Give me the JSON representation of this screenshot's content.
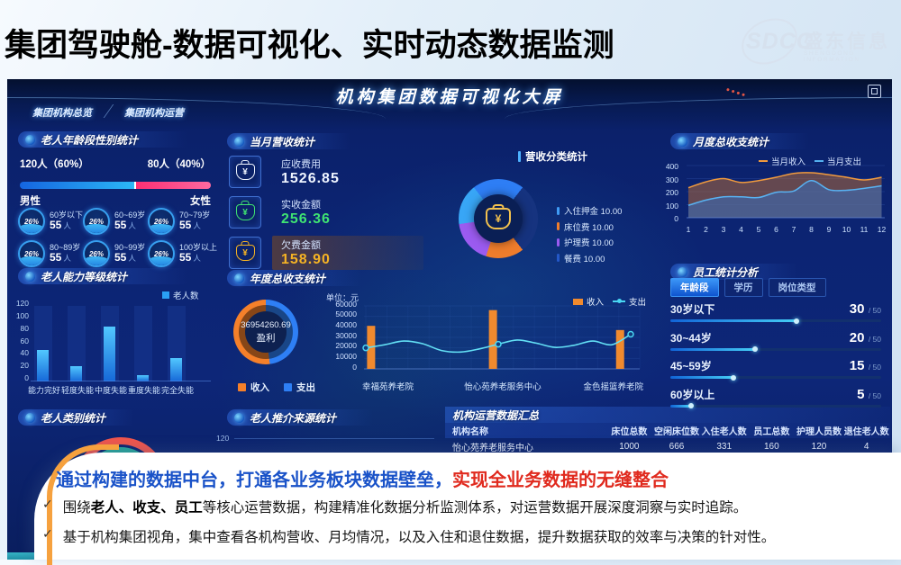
{
  "slide": {
    "title": "集团驾驶舱-数据可视化、实时动态数据监测",
    "logo": {
      "abbr": "SDCC",
      "name": "盛东信息",
      "subtitle": "SHENGDONG INFORMATION"
    }
  },
  "dashboard": {
    "title": "机构集团数据可视化大屏",
    "tabs": [
      {
        "label": "集团机构总览"
      },
      {
        "label": "集团机构运营"
      }
    ]
  },
  "age_gender": {
    "title": "老人年龄段性别统计",
    "male_count": "120人（60%）",
    "female_count": "80人（40%）",
    "male_label": "男性",
    "female_label": "女性",
    "male_pct": 60,
    "groups": [
      {
        "pct": "26%",
        "range": "60岁以下",
        "count": "55",
        "unit": "人"
      },
      {
        "pct": "26%",
        "range": "60~69岁",
        "count": "55",
        "unit": "人"
      },
      {
        "pct": "26%",
        "range": "70~79岁",
        "count": "55",
        "unit": "人"
      },
      {
        "pct": "26%",
        "range": "80~89岁",
        "count": "55",
        "unit": "人"
      },
      {
        "pct": "26%",
        "range": "90~99岁",
        "count": "55",
        "unit": "人"
      },
      {
        "pct": "26%",
        "range": "100岁以上",
        "count": "55",
        "unit": "人"
      }
    ]
  },
  "ability": {
    "title": "老人能力等级统计",
    "legend": "老人数",
    "yticks": [
      0,
      20,
      40,
      60,
      80,
      100,
      120
    ],
    "ymax": 120,
    "chart_data": {
      "type": "bar",
      "categories": [
        "能力完好",
        "轻度失能",
        "中度失能",
        "重度失能",
        "完全失能"
      ],
      "values": [
        50,
        25,
        88,
        10,
        38
      ]
    }
  },
  "elder_category": {
    "title": "老人类别统计"
  },
  "referral": {
    "title": "老人推介来源统计",
    "tick": "120"
  },
  "month_revenue": {
    "title": "当月营收统计",
    "cards": [
      {
        "icon": "money-bag-icon",
        "label": "应收费用",
        "value": "1526.85",
        "color": "#eef4ff"
      },
      {
        "icon": "cash-jar-icon",
        "label": "实收金额",
        "value": "256.36",
        "color": "#3fe372"
      },
      {
        "icon": "coins-icon",
        "label": "欠费金额",
        "value": "158.90",
        "color": "#f5b324"
      }
    ]
  },
  "revenue_class": {
    "title": "营收分类统计",
    "legend": [
      {
        "label": "入住押金",
        "value": "10.00",
        "color": "#3f9bf5"
      },
      {
        "label": "床位费",
        "value": "10.00",
        "color": "#ef7d2c"
      },
      {
        "label": "护理费",
        "value": "10.00",
        "color": "#9b5bf0"
      },
      {
        "label": "餐费",
        "value": "10.00",
        "color": "#2458c8"
      }
    ],
    "segments": [
      {
        "color": "#2e7ef5",
        "from": 0,
        "to": 38
      },
      {
        "color": "#16337f",
        "from": 38,
        "to": 142
      },
      {
        "color": "#ef7d2c",
        "from": 142,
        "to": 198
      },
      {
        "color": "#9b5bf0",
        "from": 198,
        "to": 262
      },
      {
        "color": "#38a6f6",
        "from": 262,
        "to": 322
      },
      {
        "color": "#2e7ef5",
        "from": 322,
        "to": 360
      }
    ]
  },
  "annual": {
    "title": "年度总收支统计",
    "donut": {
      "value": "36954260.69",
      "label": "盈利",
      "income_pct": 52,
      "income_color": "#f5802a",
      "expense_color": "#2e7ff5"
    },
    "legend": [
      {
        "label": "收入",
        "color": "#f5802a"
      },
      {
        "label": "支出",
        "color": "#2e7ff5"
      }
    ],
    "combo": {
      "unit": "单位：元",
      "yticks": [
        0,
        10000,
        20000,
        30000,
        40000,
        50000,
        60000
      ],
      "ymax": 60000,
      "chart_data": {
        "type": "bar+line",
        "categories": [
          "幸福苑养老院",
          "怡心苑养老服务中心",
          "金色摇篮养老院"
        ],
        "bar_values": [
          41000,
          56000,
          37000
        ],
        "bar_positions": [
          0.02,
          0.48,
          0.96
        ],
        "line_values": [
          20000,
          23000,
          26500,
          24000,
          17500,
          16000,
          19000,
          23500,
          27500,
          24500,
          20500,
          22500,
          26500,
          23000,
          33000
        ]
      },
      "legend": [
        {
          "label": "收入",
          "color": "#f08a2e",
          "type": "bar"
        },
        {
          "label": "支出",
          "color": "#49d6f2",
          "type": "line"
        }
      ]
    }
  },
  "monthly": {
    "title": "月度总收支统计",
    "legend": [
      {
        "label": "当月收入",
        "color": "#f09a3e"
      },
      {
        "label": "当月支出",
        "color": "#54b0f0"
      }
    ],
    "yticks": [
      0,
      100,
      200,
      300,
      400
    ],
    "ymax": 400,
    "chart_data": {
      "type": "area",
      "x_labels": [
        "1",
        "2",
        "3",
        "4",
        "5",
        "6",
        "7",
        "8",
        "9",
        "10",
        "11",
        "12"
      ],
      "series": [
        {
          "name": "当月收入",
          "values": [
            230,
            275,
            300,
            270,
            285,
            310,
            340,
            345,
            330,
            310,
            290,
            310
          ]
        },
        {
          "name": "当月支出",
          "values": [
            95,
            135,
            160,
            160,
            155,
            195,
            205,
            285,
            215,
            210,
            225,
            245
          ]
        }
      ]
    }
  },
  "employee": {
    "title": "员工统计分析",
    "tabs": [
      {
        "label": "年龄段",
        "active": true
      },
      {
        "label": "学历",
        "active": false
      },
      {
        "label": "岗位类型",
        "active": false
      }
    ],
    "rows": [
      {
        "label": "30岁以下",
        "value": "30",
        "max": "50"
      },
      {
        "label": "30~44岁",
        "value": "20",
        "max": "50"
      },
      {
        "label": "45~59岁",
        "value": "15",
        "max": "50"
      },
      {
        "label": "60岁以上",
        "value": "5",
        "max": "50"
      }
    ]
  },
  "summary": {
    "title": "机构运营数据汇总",
    "headers": [
      "机构名称",
      "床位总数",
      "空闲床位数",
      "入住老人数",
      "员工总数",
      "护理人员数",
      "退住老人数"
    ],
    "rows": [
      [
        "怡心苑养老服务中心",
        "1000",
        "666",
        "331",
        "160",
        "120",
        "4"
      ]
    ]
  },
  "overlay": {
    "heading_blue": "通过构建的数据中台，打通各业务板块数据壁垒，",
    "heading_red": "实现全业务数据的无缝整合",
    "bullets": [
      {
        "check": "✓",
        "pre": "围绕",
        "bold": "老人、收支、员工",
        "post": "等核心运营数据，构建精准化数据分析监测体系，对运营数据开展深度洞察与实时追踪。"
      },
      {
        "check": "✓",
        "pre": "",
        "bold": "",
        "post": "基于机构集团视角，集中查看各机构营收、月均情况，以及入住和退住数据，提升数据获取的效率与决策的针对性。"
      }
    ]
  }
}
